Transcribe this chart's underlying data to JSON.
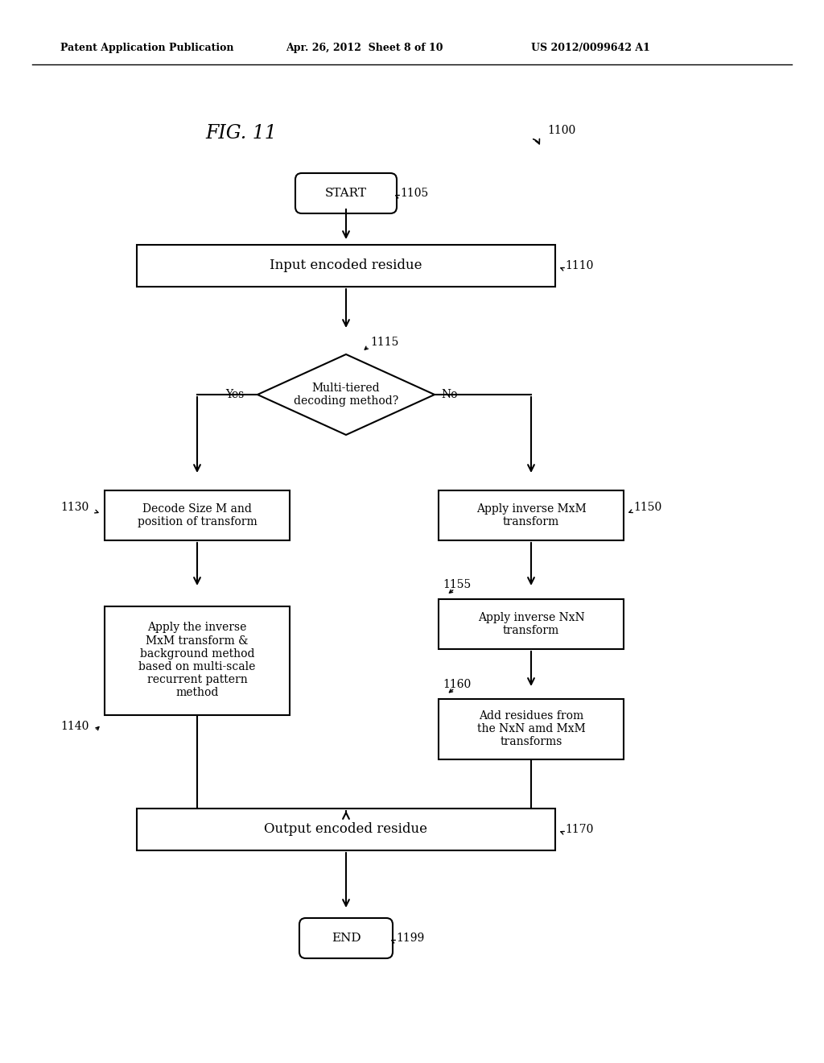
{
  "header_left": "Patent Application Publication",
  "header_mid": "Apr. 26, 2012  Sheet 8 of 10",
  "header_right": "US 2012/0099642 A1",
  "fig_label": "FIG. 11",
  "bg_color": "#ffffff",
  "lw": 1.5,
  "fontsize_body": 11,
  "fontsize_ref": 10,
  "fontsize_header": 9,
  "fontsize_fig": 17
}
